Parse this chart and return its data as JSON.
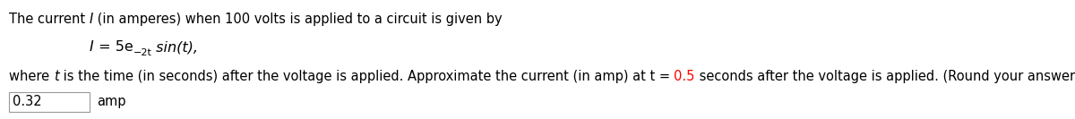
{
  "bg_color": "#ffffff",
  "text_color": "#000000",
  "red_color": "#ff0000",
  "font_size": 10.5,
  "eq_font_size": 11.5,
  "sup_font_size": 8.0,
  "line1_parts": [
    {
      "text": "The current ",
      "style": "normal",
      "color": "#000000"
    },
    {
      "text": "I",
      "style": "italic",
      "color": "#000000"
    },
    {
      "text": " (in amperes) when 100 volts is applied to a circuit is given by",
      "style": "normal",
      "color": "#000000"
    }
  ],
  "line3_parts": [
    {
      "text": "where ",
      "style": "normal",
      "color": "#000000"
    },
    {
      "text": "t",
      "style": "italic",
      "color": "#000000"
    },
    {
      "text": " is the time (in seconds) after the voltage is applied. Approximate the current (in amp) at t = ",
      "style": "normal",
      "color": "#000000"
    },
    {
      "text": "0.5",
      "style": "normal",
      "color": "#ff0000"
    },
    {
      "text": " seconds after the voltage is applied. (Round your answer to two decimal places.)",
      "style": "normal",
      "color": "#000000"
    }
  ],
  "answer": "0.32",
  "answer_unit": "amp"
}
